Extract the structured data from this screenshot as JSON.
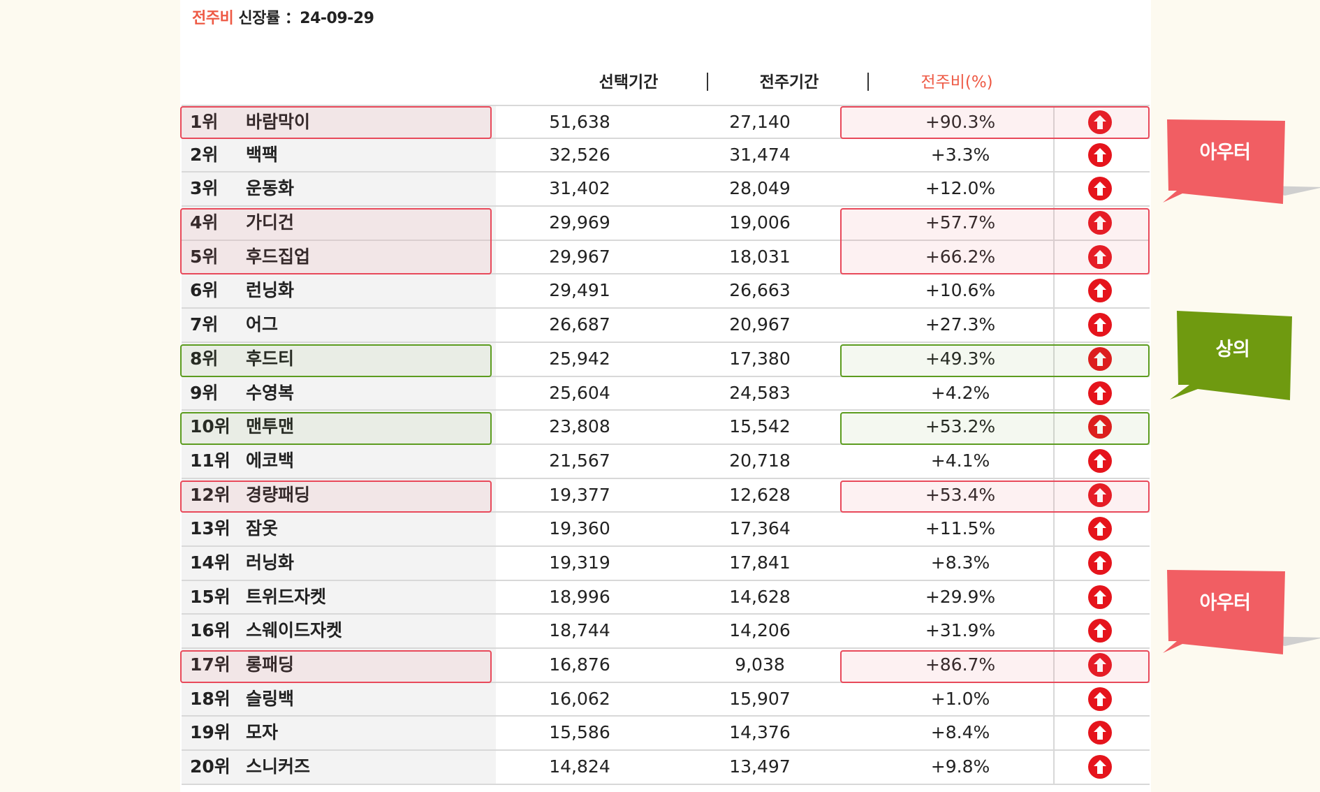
{
  "header": {
    "title_accent": "전주비",
    "title_rest": " 신장률 ：24-09-29"
  },
  "columns": {
    "selected": "선택기간",
    "previous": "전주기간",
    "ratio": "전주비(%)",
    "divider": "|"
  },
  "rows": [
    {
      "rank": "1위",
      "name": "바람막이",
      "selected": "51,638",
      "previous": "27,140",
      "ratio": "+90.3%",
      "trend": "up"
    },
    {
      "rank": "2위",
      "name": "백팩",
      "selected": "32,526",
      "previous": "31,474",
      "ratio": "+3.3%",
      "trend": "up"
    },
    {
      "rank": "3위",
      "name": "운동화",
      "selected": "31,402",
      "previous": "28,049",
      "ratio": "+12.0%",
      "trend": "up"
    },
    {
      "rank": "4위",
      "name": "가디건",
      "selected": "29,969",
      "previous": "19,006",
      "ratio": "+57.7%",
      "trend": "up"
    },
    {
      "rank": "5위",
      "name": "후드집업",
      "selected": "29,967",
      "previous": "18,031",
      "ratio": "+66.2%",
      "trend": "up"
    },
    {
      "rank": "6위",
      "name": "런닝화",
      "selected": "29,491",
      "previous": "26,663",
      "ratio": "+10.6%",
      "trend": "up"
    },
    {
      "rank": "7위",
      "name": "어그",
      "selected": "26,687",
      "previous": "20,967",
      "ratio": "+27.3%",
      "trend": "up"
    },
    {
      "rank": "8위",
      "name": "후드티",
      "selected": "25,942",
      "previous": "17,380",
      "ratio": "+49.3%",
      "trend": "up"
    },
    {
      "rank": "9위",
      "name": "수영복",
      "selected": "25,604",
      "previous": "24,583",
      "ratio": "+4.2%",
      "trend": "up"
    },
    {
      "rank": "10위",
      "name": "맨투맨",
      "selected": "23,808",
      "previous": "15,542",
      "ratio": "+53.2%",
      "trend": "up"
    },
    {
      "rank": "11위",
      "name": "에코백",
      "selected": "21,567",
      "previous": "20,718",
      "ratio": "+4.1%",
      "trend": "up"
    },
    {
      "rank": "12위",
      "name": "경량패딩",
      "selected": "19,377",
      "previous": "12,628",
      "ratio": "+53.4%",
      "trend": "up"
    },
    {
      "rank": "13위",
      "name": "잠옷",
      "selected": "19,360",
      "previous": "17,364",
      "ratio": "+11.5%",
      "trend": "up"
    },
    {
      "rank": "14위",
      "name": "러닝화",
      "selected": "19,319",
      "previous": "17,841",
      "ratio": "+8.3%",
      "trend": "up"
    },
    {
      "rank": "15위",
      "name": "트위드자켓",
      "selected": "18,996",
      "previous": "14,628",
      "ratio": "+29.9%",
      "trend": "up"
    },
    {
      "rank": "16위",
      "name": "스웨이드자켓",
      "selected": "18,744",
      "previous": "14,206",
      "ratio": "+31.9%",
      "trend": "up"
    },
    {
      "rank": "17위",
      "name": "롱패딩",
      "selected": "16,876",
      "previous": "9,038",
      "ratio": "+86.7%",
      "trend": "up"
    },
    {
      "rank": "18위",
      "name": "슬링백",
      "selected": "16,062",
      "previous": "15,907",
      "ratio": "+1.0%",
      "trend": "up"
    },
    {
      "rank": "19위",
      "name": "모자",
      "selected": "15,586",
      "previous": "14,376",
      "ratio": "+8.4%",
      "trend": "up"
    },
    {
      "rank": "20위",
      "name": "스니커즈",
      "selected": "14,824",
      "previous": "13,497",
      "ratio": "+9.8%",
      "trend": "up"
    }
  ],
  "callouts": {
    "outer_1": "아우터",
    "top_1": "상의",
    "outer_2": "아우터"
  },
  "colors": {
    "accent": "#ee5a45",
    "up_icon": "#e5141c",
    "outer_highlight": "#e8495a",
    "top_highlight": "#5c9c1f",
    "outer_callout": "#f15e63",
    "top_callout": "#6f9a10"
  },
  "icons": {
    "trend_up": "arrow-up-circle-icon"
  }
}
